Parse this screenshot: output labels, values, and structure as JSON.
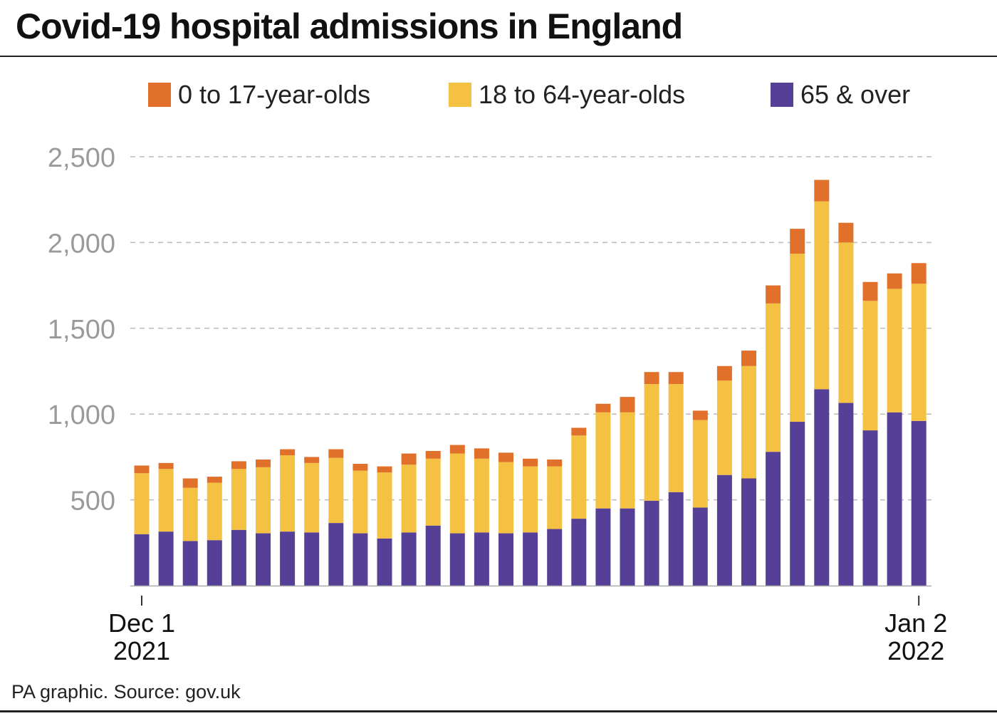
{
  "title": "Covid-19 hospital admissions in England",
  "source": "PA graphic. Source: gov.uk",
  "colors": {
    "age_0_17": "#E0702A",
    "age_18_64": "#F4C142",
    "age_65_over": "#563F97",
    "grid": "#bbbbbb",
    "axis_text": "#9a9a9a"
  },
  "chart_data": {
    "type": "bar",
    "stacked": true,
    "title": "Covid-19 hospital admissions in England",
    "x_start_label": [
      "Dec 1",
      "2021"
    ],
    "x_end_label": [
      "Jan 2",
      "2022"
    ],
    "y_ticks": [
      "500",
      "1,000",
      "1,500",
      "2,000",
      "2,500"
    ],
    "y_tick_values": [
      500,
      1000,
      1500,
      2000,
      2500
    ],
    "ylim": [
      0,
      2500
    ],
    "grid": true,
    "legend_position": "top",
    "categories": [
      "Dec 1",
      "Dec 2",
      "Dec 3",
      "Dec 4",
      "Dec 5",
      "Dec 6",
      "Dec 7",
      "Dec 8",
      "Dec 9",
      "Dec 10",
      "Dec 11",
      "Dec 12",
      "Dec 13",
      "Dec 14",
      "Dec 15",
      "Dec 16",
      "Dec 17",
      "Dec 18",
      "Dec 19",
      "Dec 20",
      "Dec 21",
      "Dec 22",
      "Dec 23",
      "Dec 24",
      "Dec 25",
      "Dec 26",
      "Dec 27",
      "Dec 28",
      "Dec 29",
      "Dec 30",
      "Dec 31",
      "Jan 1",
      "Jan 2"
    ],
    "series": [
      {
        "name": "65 & over",
        "color": "#563F97",
        "values": [
          300,
          315,
          260,
          265,
          325,
          305,
          315,
          310,
          365,
          305,
          275,
          310,
          350,
          305,
          310,
          305,
          310,
          330,
          390,
          450,
          450,
          495,
          545,
          455,
          645,
          625,
          780,
          955,
          1145,
          1065,
          905,
          1010,
          960
        ]
      },
      {
        "name": "18 to 64-year-olds",
        "color": "#F4C142",
        "values": [
          355,
          365,
          310,
          335,
          355,
          385,
          445,
          405,
          380,
          365,
          385,
          395,
          390,
          465,
          430,
          415,
          385,
          365,
          485,
          560,
          560,
          680,
          630,
          510,
          550,
          655,
          865,
          980,
          1095,
          935,
          755,
          720,
          800
        ]
      },
      {
        "name": "0 to 17-year-olds",
        "color": "#E0702A",
        "values": [
          45,
          35,
          55,
          35,
          45,
          45,
          35,
          35,
          50,
          40,
          35,
          65,
          45,
          50,
          60,
          55,
          45,
          40,
          45,
          50,
          90,
          70,
          70,
          55,
          85,
          90,
          105,
          145,
          125,
          115,
          110,
          90,
          120
        ]
      }
    ]
  }
}
